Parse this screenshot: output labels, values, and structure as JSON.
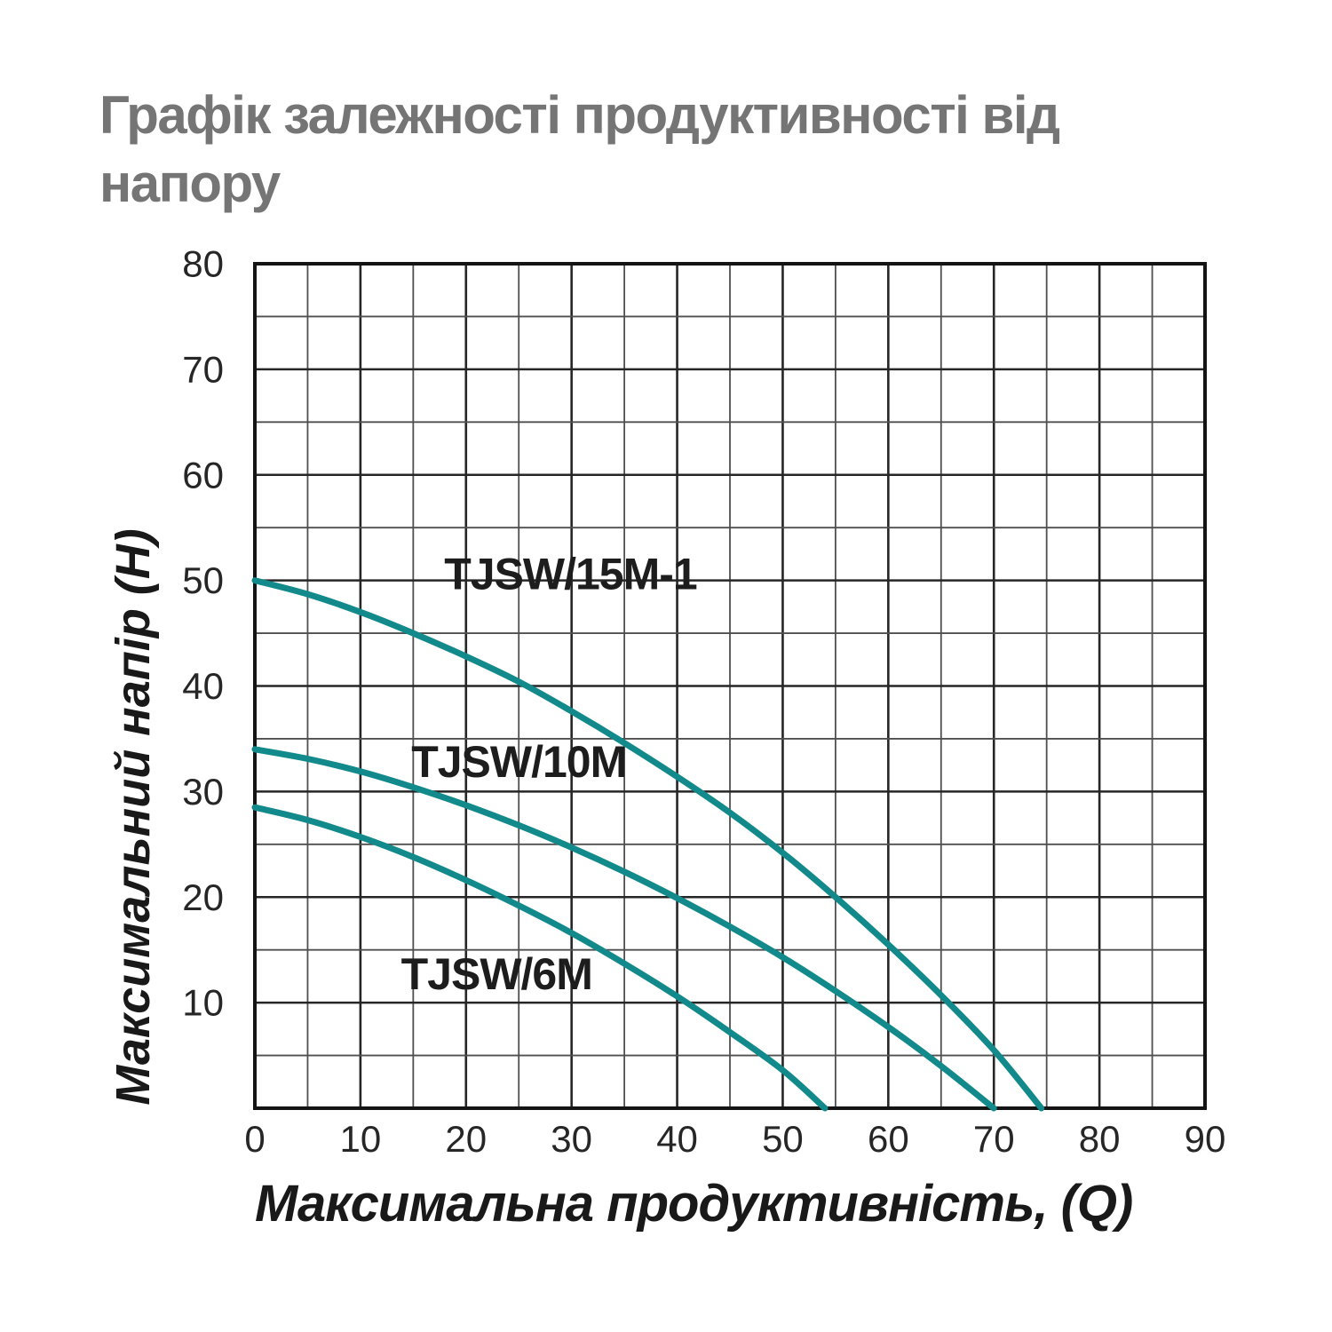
{
  "title": "Графік залежності продуктивності від напору",
  "chart_data": {
    "type": "line",
    "title": "Графік залежності продуктивності від напору",
    "xlabel": "Максимальна продуктивність, (Q)",
    "ylabel": "Максимальний напір (Н)",
    "xlim": [
      0,
      90
    ],
    "ylim": [
      0,
      80
    ],
    "grid": true,
    "grid_step": 5,
    "x_ticks": [
      0,
      10,
      20,
      30,
      40,
      50,
      60,
      70,
      80,
      90
    ],
    "y_ticks": [
      10,
      20,
      30,
      40,
      50,
      60,
      70,
      80
    ],
    "legend_position": "inline-curve-labels",
    "colors": {
      "curve": "#12898a",
      "grid_major": "#262626",
      "grid_minor": "#4f4f4f",
      "border": "#141414",
      "tick_text": "#262626",
      "curve_label_text": "#1d1d1d",
      "axis_label_text": "#191919",
      "title_text": "#757575"
    },
    "series": [
      {
        "name": "TJSW/15M-1",
        "color": "#12898a",
        "label_at": {
          "q": 29.9,
          "h": 50.6
        },
        "points": [
          [
            0,
            50
          ],
          [
            5,
            48.7
          ],
          [
            10,
            47
          ],
          [
            15,
            45
          ],
          [
            20,
            42.8
          ],
          [
            25,
            40.4
          ],
          [
            30,
            37.6
          ],
          [
            35,
            34.6
          ],
          [
            40,
            31.4
          ],
          [
            45,
            28
          ],
          [
            50,
            24.2
          ],
          [
            55,
            20
          ],
          [
            60,
            15.5
          ],
          [
            65,
            10.7
          ],
          [
            70,
            5.5
          ],
          [
            74.5,
            0
          ]
        ]
      },
      {
        "name": "TJSW/10M",
        "color": "#12898a",
        "label_at": {
          "q": 25,
          "h": 32.8
        },
        "points": [
          [
            0,
            34
          ],
          [
            5,
            33.1
          ],
          [
            10,
            31.9
          ],
          [
            15,
            30.4
          ],
          [
            20,
            28.7
          ],
          [
            25,
            26.8
          ],
          [
            30,
            24.7
          ],
          [
            35,
            22.4
          ],
          [
            40,
            19.9
          ],
          [
            45,
            17.2
          ],
          [
            50,
            14.3
          ],
          [
            55,
            11.1
          ],
          [
            60,
            7.7
          ],
          [
            65,
            4
          ],
          [
            70,
            0
          ]
        ]
      },
      {
        "name": "TJSW/6M",
        "color": "#12898a",
        "label_at": {
          "q": 22.9,
          "h": 12.7
        },
        "points": [
          [
            0,
            28.5
          ],
          [
            5,
            27.3
          ],
          [
            10,
            25.7
          ],
          [
            15,
            23.8
          ],
          [
            20,
            21.6
          ],
          [
            25,
            19.2
          ],
          [
            30,
            16.6
          ],
          [
            35,
            13.7
          ],
          [
            40,
            10.6
          ],
          [
            45,
            7.2
          ],
          [
            50,
            3.6
          ],
          [
            54,
            0
          ]
        ]
      }
    ]
  }
}
